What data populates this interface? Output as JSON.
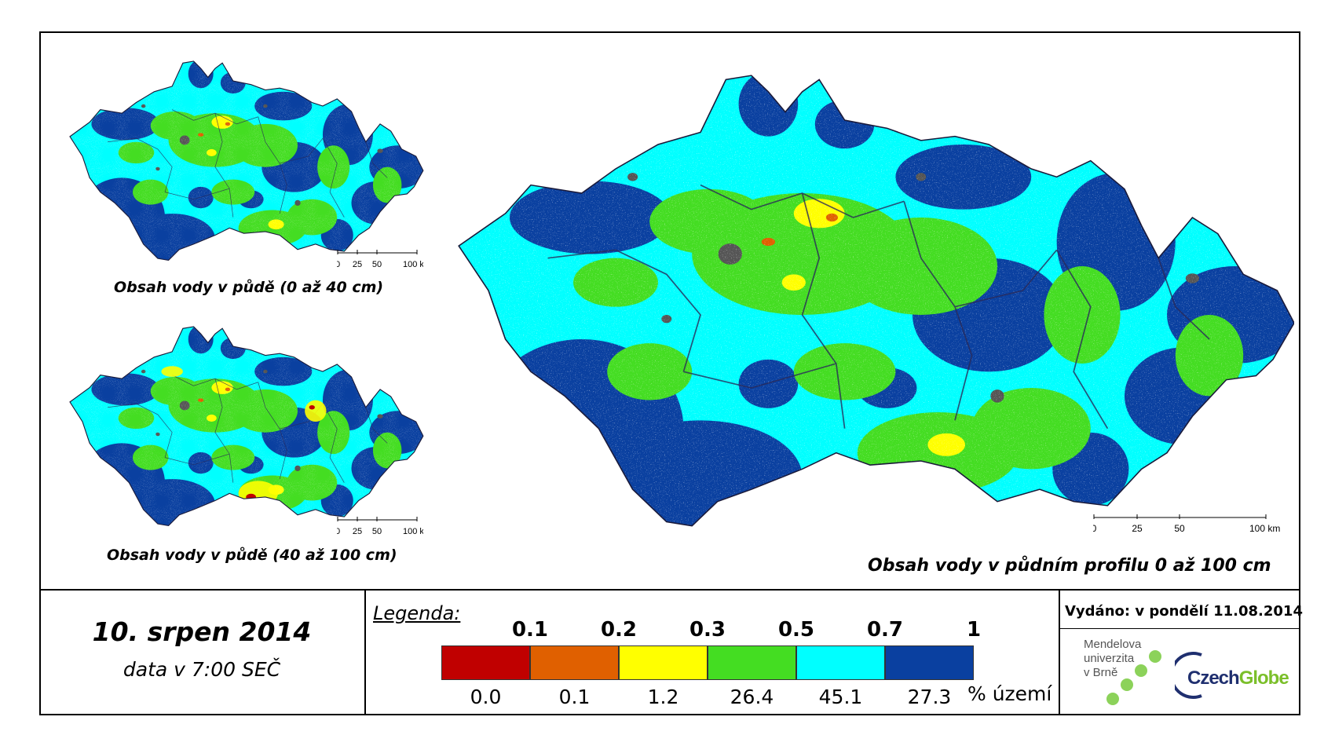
{
  "maps": {
    "top_left": {
      "title": "Obsah vody v půdě (0 až 40 cm)"
    },
    "bottom_left": {
      "title": "Obsah vody v půdě (40 až 100 cm)"
    },
    "main": {
      "title": "Obsah vody v půdním profilu 0 až 100 cm"
    }
  },
  "scale_labels": [
    "0",
    "25",
    "50",
    "100 km"
  ],
  "date": "10. srpen 2014",
  "time_note": "data v 7:00 SEČ",
  "legend": {
    "title": "Legenda:",
    "thresholds": [
      "0.1",
      "0.2",
      "0.3",
      "0.5",
      "0.7",
      "1"
    ],
    "colors": [
      "#c00000",
      "#e06000",
      "#ffff00",
      "#44dd22",
      "#00ffff",
      "#0a40a0"
    ],
    "percentages": [
      "0.0",
      "0.1",
      "1.2",
      "26.4",
      "45.1",
      "27.3"
    ],
    "unit": "% území"
  },
  "issued": "Vydáno: v pondělí 11.08.2014",
  "logos": {
    "mendel": [
      "Mendelova",
      "univerzita",
      "v Brně"
    ],
    "czechglobe": {
      "part1": "Czech",
      "part2": "Globe"
    }
  },
  "colors": {
    "deep_blue": "#0a40a0",
    "cyan": "#00ffff",
    "green": "#44dd22",
    "yellow": "#ffff00",
    "orange": "#e06000",
    "red": "#c00000",
    "urban": "#555555"
  }
}
